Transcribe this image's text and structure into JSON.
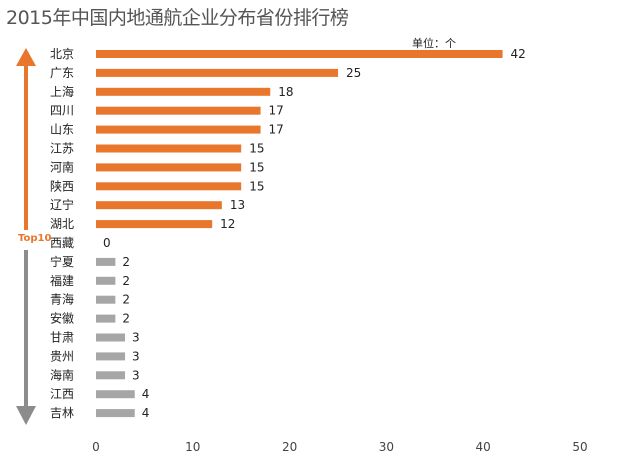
{
  "chart_data": {
    "type": "bar",
    "orientation": "horizontal",
    "title": "2015年中国内地通航企业分布省份排行榜",
    "unit_label": "单位：个",
    "categories": [
      "北京",
      "广东",
      "上海",
      "四川",
      "山东",
      "江苏",
      "河南",
      "陕西",
      "辽宁",
      "湖北",
      "西藏",
      "宁夏",
      "福建",
      "青海",
      "安徽",
      "甘肃",
      "贵州",
      "海南",
      "江西",
      "吉林"
    ],
    "values": [
      42,
      25,
      18,
      17,
      17,
      15,
      15,
      15,
      13,
      12,
      0,
      2,
      2,
      2,
      2,
      3,
      3,
      3,
      4,
      4
    ],
    "groups": [
      {
        "name": "Top10",
        "count": 10,
        "color": "#e8762c"
      },
      {
        "name": "",
        "count": 10,
        "color": "#a6a6a6"
      }
    ],
    "xlim": [
      0,
      50
    ],
    "xticks": [
      0,
      10,
      20,
      30,
      40,
      50
    ],
    "xlabel": "",
    "ylabel": "",
    "grid": false,
    "legend": "none",
    "annotation": "Top10",
    "colors": {
      "top": "#e8762c",
      "bottom": "#a6a6a6",
      "arrow_top": "#e8762c",
      "arrow_bottom": "#8c8c8c"
    }
  }
}
